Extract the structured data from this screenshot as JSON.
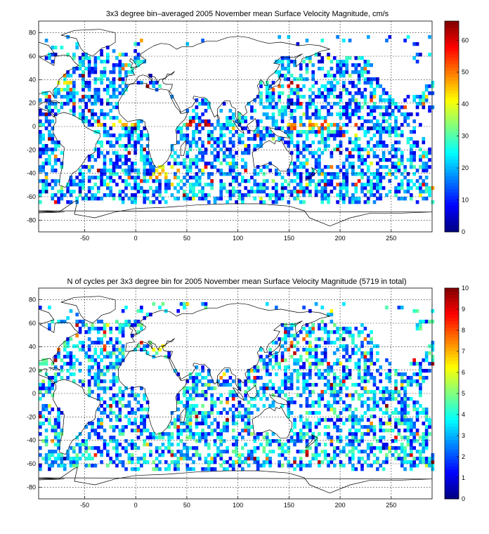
{
  "chart_data": [
    {
      "type": "heatmap",
      "title": "3x3 degree bin–averaged 2005 November mean Surface Velocity Magnitude, cm/s",
      "xlim": [
        -95,
        290
      ],
      "ylim": [
        -90,
        90
      ],
      "x_ticks": [
        -50,
        0,
        50,
        100,
        150,
        200,
        250
      ],
      "y_ticks": [
        80,
        60,
        40,
        20,
        0,
        -20,
        -40,
        -60,
        -80
      ],
      "colorbar": {
        "min": 0,
        "max": 66,
        "ticks": [
          0,
          10,
          20,
          30,
          40,
          50,
          60
        ],
        "colormap": "jet"
      },
      "grid": true,
      "bin_size_deg": 3,
      "seed": 7,
      "hotspots": [
        {
          "x": 60,
          "y": 3,
          "rx": 20,
          "ry": 4,
          "value": 66
        },
        {
          "x": 150,
          "y": 36,
          "rx": 12,
          "ry": 4,
          "value": 64
        },
        {
          "x": 185,
          "y": 1,
          "rx": 45,
          "ry": 4,
          "value": 55
        },
        {
          "x": -20,
          "y": 2,
          "rx": 20,
          "ry": 3,
          "value": 50
        },
        {
          "x": 30,
          "y": -40,
          "rx": 20,
          "ry": 6,
          "value": 50
        },
        {
          "x": -70,
          "y": 40,
          "rx": 8,
          "ry": 5,
          "value": 50
        }
      ],
      "base_range": [
        5,
        30
      ]
    },
    {
      "type": "heatmap",
      "title": "N of cycles per 3x3 degree bin for 2005 November mean Surface Velocity Magnitude (5719 in total)",
      "xlim": [
        -95,
        290
      ],
      "ylim": [
        -90,
        90
      ],
      "x_ticks": [
        -50,
        0,
        50,
        100,
        150,
        200,
        250
      ],
      "y_ticks": [
        80,
        60,
        40,
        20,
        0,
        -20,
        -40,
        -60,
        -80
      ],
      "colorbar": {
        "min": 0,
        "max": 10,
        "ticks": [
          0,
          1,
          2,
          3,
          4,
          5,
          6,
          7,
          8,
          9,
          10
        ],
        "colormap": "jet"
      },
      "grid": true,
      "bin_size_deg": 3,
      "seed": 13,
      "hotspots": [
        {
          "x": 150,
          "y": 38,
          "rx": 8,
          "ry": 6,
          "value": 10
        },
        {
          "x": 25,
          "y": 38,
          "rx": 10,
          "ry": 3,
          "value": 7
        },
        {
          "x": 87,
          "y": 15,
          "rx": 5,
          "ry": 4,
          "value": 8
        }
      ],
      "base_range": [
        1,
        5
      ]
    }
  ]
}
